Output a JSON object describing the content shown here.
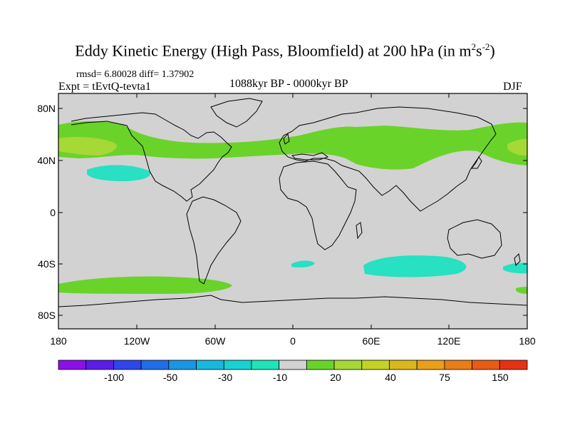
{
  "title": {
    "main": "Eddy Kinetic Energy (High Pass, Bloomfield) at 200 hPa (in m",
    "sup1": "2",
    "mid": "s",
    "sup2": "-2",
    "close": ")"
  },
  "stats_line": "rmsd= 6.80028 diff= 1.37902",
  "experiment": "Expt = tEvtQ-tevta1",
  "period": "1088kyr BP - 0000kyr BP",
  "season": "DJF",
  "colors": {
    "background_field": "#d2d2d2",
    "green": "#6ad32a",
    "yellow_green": "#a6d836",
    "cyan": "#28e0c2"
  },
  "map": {
    "lat_ticks": [
      "80N",
      "40N",
      "0",
      "40S",
      "80S"
    ],
    "lon_ticks": [
      "180",
      "120W",
      "60W",
      "0",
      "60E",
      "120E",
      "180"
    ]
  },
  "colorbar": {
    "colors": [
      "#8a10e6",
      "#5a1ee8",
      "#3046e8",
      "#1f6ee6",
      "#1a96e2",
      "#18b8dc",
      "#18d2d2",
      "#1ee4b8",
      "#d2d2d2",
      "#6ad32a",
      "#a6d836",
      "#c4d226",
      "#d8b81c",
      "#e8a018",
      "#e87e16",
      "#e85c16",
      "#e63214"
    ],
    "labels": [
      "-100",
      "-50",
      "-30",
      "-10",
      "20",
      "40",
      "75",
      "150"
    ]
  }
}
